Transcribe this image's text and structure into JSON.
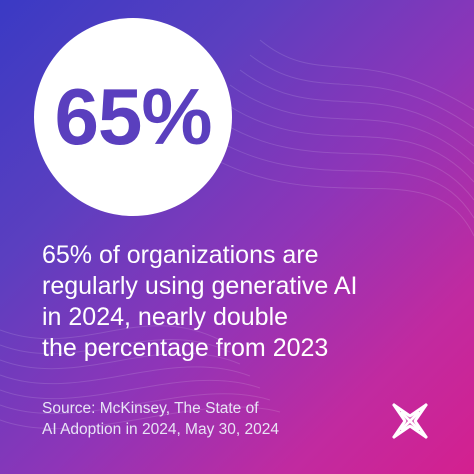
{
  "stat": {
    "value": "65%"
  },
  "headline": {
    "lines": [
      "65% of organizations are",
      "regularly using generative AI",
      "in 2024, nearly double",
      "the percentage from 2023"
    ]
  },
  "source": {
    "lines": [
      "Source: McKinsey, The State of",
      "AI Adoption in 2024, May 30, 2024"
    ]
  },
  "logo": {
    "icon": "x-star-logo-icon"
  },
  "colors": {
    "gradient_start": "#3a3ac4",
    "gradient_mid": "#8e35b8",
    "gradient_end": "#d4208f",
    "stat_text": "#5a3fbe",
    "circle": "#ffffff",
    "text": "#ffffff"
  }
}
